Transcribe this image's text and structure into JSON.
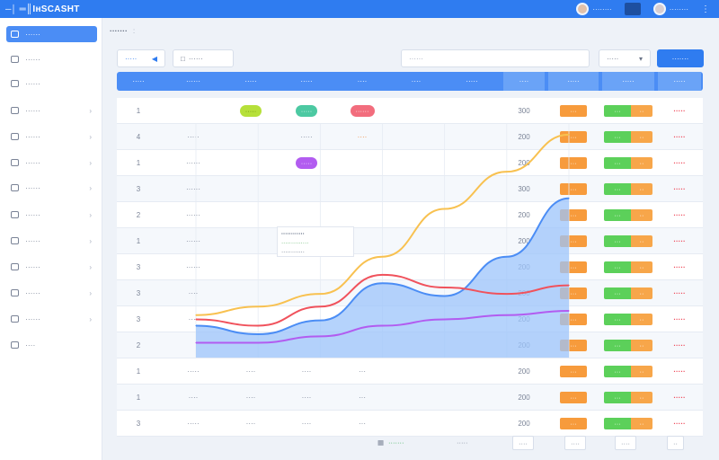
{
  "app": {
    "title": "═║IʜSCASHT"
  },
  "topbar": {
    "user1": "········",
    "user2": "········"
  },
  "sidebar": {
    "items": [
      {
        "label": "······",
        "icon": "grid-icon",
        "active": true
      },
      {
        "label": "······",
        "icon": "square-icon"
      },
      {
        "label": "······",
        "icon": "folder-icon"
      },
      {
        "label": "······",
        "icon": "square-icon"
      },
      {
        "label": "······",
        "icon": "grid-icon"
      },
      {
        "label": "······",
        "icon": "list-icon"
      },
      {
        "label": "······",
        "icon": "grid-icon"
      },
      {
        "label": "······",
        "icon": "grid-icon"
      },
      {
        "label": "······",
        "icon": "square-icon"
      },
      {
        "label": "······",
        "icon": "square-icon"
      },
      {
        "label": "······",
        "icon": "square-icon"
      },
      {
        "label": "······",
        "icon": "square-icon"
      },
      {
        "label": "····",
        "icon": "gear-icon"
      }
    ]
  },
  "breadcrumb": {
    "current": "·······",
    "sep": ":"
  },
  "filters": {
    "tab": "·····",
    "select": "······",
    "search_placeholder": "······",
    "range": "·····",
    "export": "·······"
  },
  "table": {
    "headers": [
      "·····",
      "······",
      "·····",
      "·····",
      "····",
      "····",
      "·····",
      "····",
      "·····",
      "·····",
      "·····"
    ],
    "rows": [
      {
        "idx": "1",
        "name": "",
        "t1": "·····",
        "t2": "·····",
        "t3": "······",
        "amt": "300",
        "a": "···",
        "b": "···",
        "c": "·····"
      },
      {
        "idx": "4",
        "name": "·····",
        "t1": "",
        "t2": "·····",
        "t3": "····",
        "amt": "200",
        "a": "···",
        "b": "···",
        "c": "·····"
      },
      {
        "idx": "1",
        "name": "······",
        "t1": "",
        "t2": "·····",
        "t3": "",
        "amt": "200",
        "a": "···",
        "b": "···",
        "c": "·····"
      },
      {
        "idx": "3",
        "name": "······",
        "t1": "",
        "t2": "",
        "t3": "",
        "amt": "300",
        "a": "···",
        "b": "···",
        "c": "·····"
      },
      {
        "idx": "2",
        "name": "······",
        "t1": "",
        "t2": "",
        "t3": "",
        "amt": "200",
        "a": "···",
        "b": "···",
        "c": "·····"
      },
      {
        "idx": "1",
        "name": "······",
        "t1": "",
        "t2": "",
        "t3": "",
        "amt": "200",
        "a": "···",
        "b": "···",
        "c": "·····"
      },
      {
        "idx": "3",
        "name": "······",
        "t1": "",
        "t2": "",
        "t3": "",
        "amt": "200",
        "a": "···",
        "b": "···",
        "c": "·····"
      },
      {
        "idx": "3",
        "name": "····",
        "t1": "",
        "t2": "",
        "t3": "",
        "amt": "200",
        "a": "···",
        "b": "···",
        "c": "·····"
      },
      {
        "idx": "3",
        "name": "····",
        "t1": "",
        "t2": "",
        "t3": "",
        "amt": "200",
        "a": "···",
        "b": "···",
        "c": "·····"
      },
      {
        "idx": "2",
        "name": "",
        "t1": "",
        "t2": "",
        "t3": "",
        "amt": "200",
        "a": "···",
        "b": "···",
        "c": "·····"
      },
      {
        "idx": "1",
        "name": "·····",
        "t1": "····",
        "t2": "····",
        "t3": "···",
        "amt": "200",
        "a": "···",
        "b": "···",
        "c": "·····"
      },
      {
        "idx": "1",
        "name": "····",
        "t1": "····",
        "t2": "····",
        "t3": "···",
        "amt": "200",
        "a": "···",
        "b": "···",
        "c": "·····"
      },
      {
        "idx": "3",
        "name": "·····",
        "t1": "····",
        "t2": "····",
        "t3": "···",
        "amt": "200",
        "a": "···",
        "b": "···",
        "c": "·····"
      }
    ]
  },
  "chart_legend": {
    "line1": "············",
    "line2": "··············",
    "line3": "············"
  },
  "chart_data": {
    "type": "area",
    "x": [
      0,
      1,
      2,
      3,
      4,
      5,
      6
    ],
    "series": [
      {
        "values": [
          30,
          22,
          35,
          70,
          58,
          95,
          150
        ],
        "color": "#4b8df5",
        "fill": "#9cc4fb"
      },
      {
        "values": [
          36,
          30,
          48,
          78,
          66,
          60,
          68
        ],
        "color": "#f0525c"
      },
      {
        "values": [
          40,
          48,
          60,
          95,
          140,
          175,
          210
        ],
        "color": "#f8c150"
      },
      {
        "values": [
          14,
          14,
          20,
          30,
          36,
          40,
          44
        ],
        "color": "#b25cf0"
      }
    ],
    "ylim": [
      0,
      220
    ],
    "grid": true
  },
  "pager": {
    "total": "·······",
    "size": "·····",
    "p1": "····",
    "p2": "····",
    "p3": "····",
    "go": "··"
  },
  "colors": {
    "primary": "#2f7cf0",
    "header": "#4b8df5",
    "orange": "#f79b3c",
    "green": "#5cd05a",
    "red": "#ef4b5b"
  }
}
